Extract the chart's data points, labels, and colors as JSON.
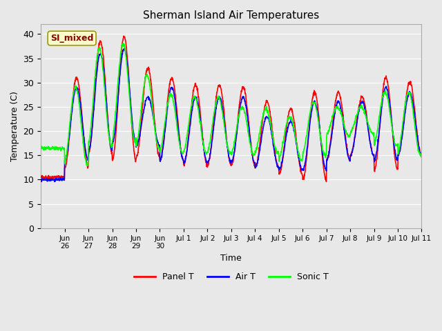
{
  "title": "Sherman Island Air Temperatures",
  "xlabel": "Time",
  "ylabel": "Temperature (C)",
  "ylim": [
    0,
    42
  ],
  "yticks": [
    0,
    5,
    10,
    15,
    20,
    25,
    30,
    35,
    40
  ],
  "background_color": "#e8e8e8",
  "grid_color": "#ffffff",
  "legend_labels": [
    "Panel T",
    "Air T",
    "Sonic T"
  ],
  "legend_colors": [
    "red",
    "blue",
    "lime"
  ],
  "annotation_text": "SI_mixed",
  "annotation_color": "#8b0000",
  "annotation_bg": "#ffffcc",
  "x_tick_labels": [
    "Jun\n26",
    "Jun\n27",
    "Jun\n28",
    "Jun\n29",
    "Jun\n30",
    "Jul 1",
    "Jul 2",
    "Jul 3",
    "Jul 4",
    "Jul 5",
    "Jul 6",
    "Jul 7",
    "Jul 8",
    "Jul 9",
    "Jul 10",
    "Jul 11"
  ],
  "line_width": 1.2,
  "panel_peaks": [
    10.5,
    31,
    38.5,
    39.5,
    33,
    31,
    29.5,
    29.5,
    29,
    26,
    24.5,
    28,
    28,
    27,
    31,
    30
  ],
  "panel_troughs": [
    10.5,
    12.5,
    15.5,
    14,
    14.5,
    14,
    13,
    13,
    13,
    12.5,
    11,
    10,
    14,
    15,
    12,
    15
  ],
  "air_peaks": [
    10,
    29,
    36,
    37,
    27,
    29,
    27,
    27,
    27,
    23,
    22,
    26,
    26,
    26,
    29,
    28
  ],
  "air_troughs": [
    10,
    14,
    16,
    17.5,
    17,
    14,
    13.5,
    13.5,
    13.5,
    12.5,
    12,
    12,
    14,
    15,
    14,
    15
  ],
  "sonic_peaks": [
    16.5,
    29,
    37,
    38,
    31.5,
    27.5,
    27,
    27,
    25,
    24.5,
    23,
    26,
    25,
    25,
    28,
    28
  ],
  "sonic_troughs": [
    16.5,
    13,
    17,
    18,
    16.5,
    15.5,
    15.5,
    15.5,
    15,
    15.5,
    14,
    15,
    19,
    19.5,
    17,
    15
  ]
}
